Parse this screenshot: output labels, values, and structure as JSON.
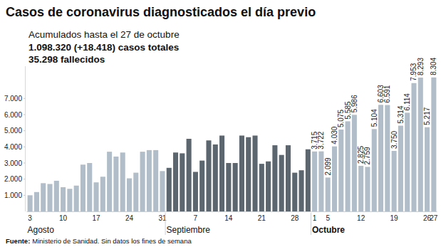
{
  "chart_data": {
    "type": "bar",
    "title": "Casos de coronavirus diagnosticados el día previo",
    "subtitle": [
      "Acumulados hasta el 27 de octubre",
      "1.098.320 (+18.418) casos totales",
      "35.298 fallecidos"
    ],
    "footer": {
      "label": "Fuente:",
      "text": "Ministerio de Sanidad. Sin datos los fines de semana"
    },
    "categories": [
      "3",
      null,
      null,
      null,
      null,
      "10",
      null,
      null,
      null,
      null,
      "17",
      null,
      null,
      null,
      null,
      "24",
      null,
      null,
      null,
      null,
      "31",
      null,
      null,
      null,
      null,
      "7",
      null,
      null,
      null,
      null,
      "14",
      null,
      null,
      null,
      null,
      "21",
      null,
      null,
      null,
      null,
      "28",
      null,
      null,
      "1",
      null,
      "5",
      null,
      null,
      null,
      null,
      "12",
      null,
      null,
      null,
      null,
      "19",
      null,
      null,
      null,
      null,
      "26",
      "27"
    ],
    "values": [
      1000,
      1200,
      1750,
      1700,
      1900,
      1500,
      1400,
      1600,
      2900,
      3000,
      1800,
      2150,
      3700,
      3400,
      3650,
      2050,
      2400,
      3700,
      3800,
      3800,
      2500,
      2700,
      3650,
      3600,
      4500,
      2450,
      3150,
      4400,
      4150,
      4700,
      3000,
      3000,
      4700,
      4600,
      4700,
      2950,
      3100,
      4100,
      3500,
      4100,
      2400,
      2550,
      3850,
      3715,
      3722,
      2099,
      4030,
      5075,
      5585,
      5986,
      2825,
      2759,
      5104,
      6603,
      6591,
      3750,
      5314,
      6114,
      7953,
      8293,
      5217,
      8304
    ],
    "value_labels": [
      null,
      null,
      null,
      null,
      null,
      null,
      null,
      null,
      null,
      null,
      null,
      null,
      null,
      null,
      null,
      null,
      null,
      null,
      null,
      null,
      null,
      null,
      null,
      null,
      null,
      null,
      null,
      null,
      null,
      null,
      null,
      null,
      null,
      null,
      null,
      null,
      null,
      null,
      null,
      null,
      null,
      null,
      null,
      "3.715",
      "3.722",
      "2.099",
      "4.030",
      "5.075",
      "5.585",
      "5.986",
      "2.825",
      "2.759",
      "5.104",
      "6.603",
      "6.591",
      "3.750",
      "5.314",
      "6.114",
      "7.953",
      "8.293",
      "5.217",
      "8.304"
    ],
    "groups": [
      {
        "label": "Agosto",
        "count": 21,
        "color": "#b1bec9"
      },
      {
        "label": "Septiembre",
        "count": 22,
        "color": "#5c666f"
      },
      {
        "label": "Octubre",
        "count": 19,
        "color": "#b1bec9"
      }
    ],
    "ylim": [
      0,
      9000
    ],
    "yticks": [
      {
        "value": 1000,
        "label": "1.000"
      },
      {
        "value": 2000,
        "label": "2.000"
      },
      {
        "value": 3000,
        "label": "3.000"
      },
      {
        "value": 4000,
        "label": "4.000"
      },
      {
        "value": 5000,
        "label": "5.000"
      },
      {
        "value": 6000,
        "label": "6.000"
      },
      {
        "value": 7000,
        "label": "7.000"
      }
    ],
    "grid": false,
    "data_labels": true
  }
}
